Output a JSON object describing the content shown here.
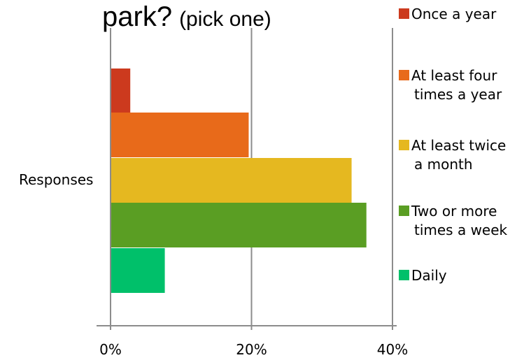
{
  "chart_data": {
    "type": "bar",
    "orientation": "horizontal",
    "title": "park?",
    "subtitle": "(pick one)",
    "categories": [
      "Responses"
    ],
    "series": [
      {
        "name": "Once a year",
        "color": "#cc3a1e",
        "values": [
          2.7
        ]
      },
      {
        "name": "At least four times a year",
        "color": "#e86a1a",
        "values": [
          19.5
        ]
      },
      {
        "name": "At least twice a month",
        "color": "#e5b820",
        "values": [
          34.1
        ]
      },
      {
        "name": "Two or more times a week",
        "color": "#5a9e23",
        "values": [
          36.2
        ]
      },
      {
        "name": "Daily",
        "color": "#00c06a",
        "values": [
          7.6
        ]
      }
    ],
    "xlim": [
      0,
      40
    ],
    "x_ticks": [
      "0%",
      "20%",
      "40%"
    ],
    "x_tick_values": [
      0,
      20,
      40
    ],
    "grid": true,
    "legend_position": "right"
  }
}
